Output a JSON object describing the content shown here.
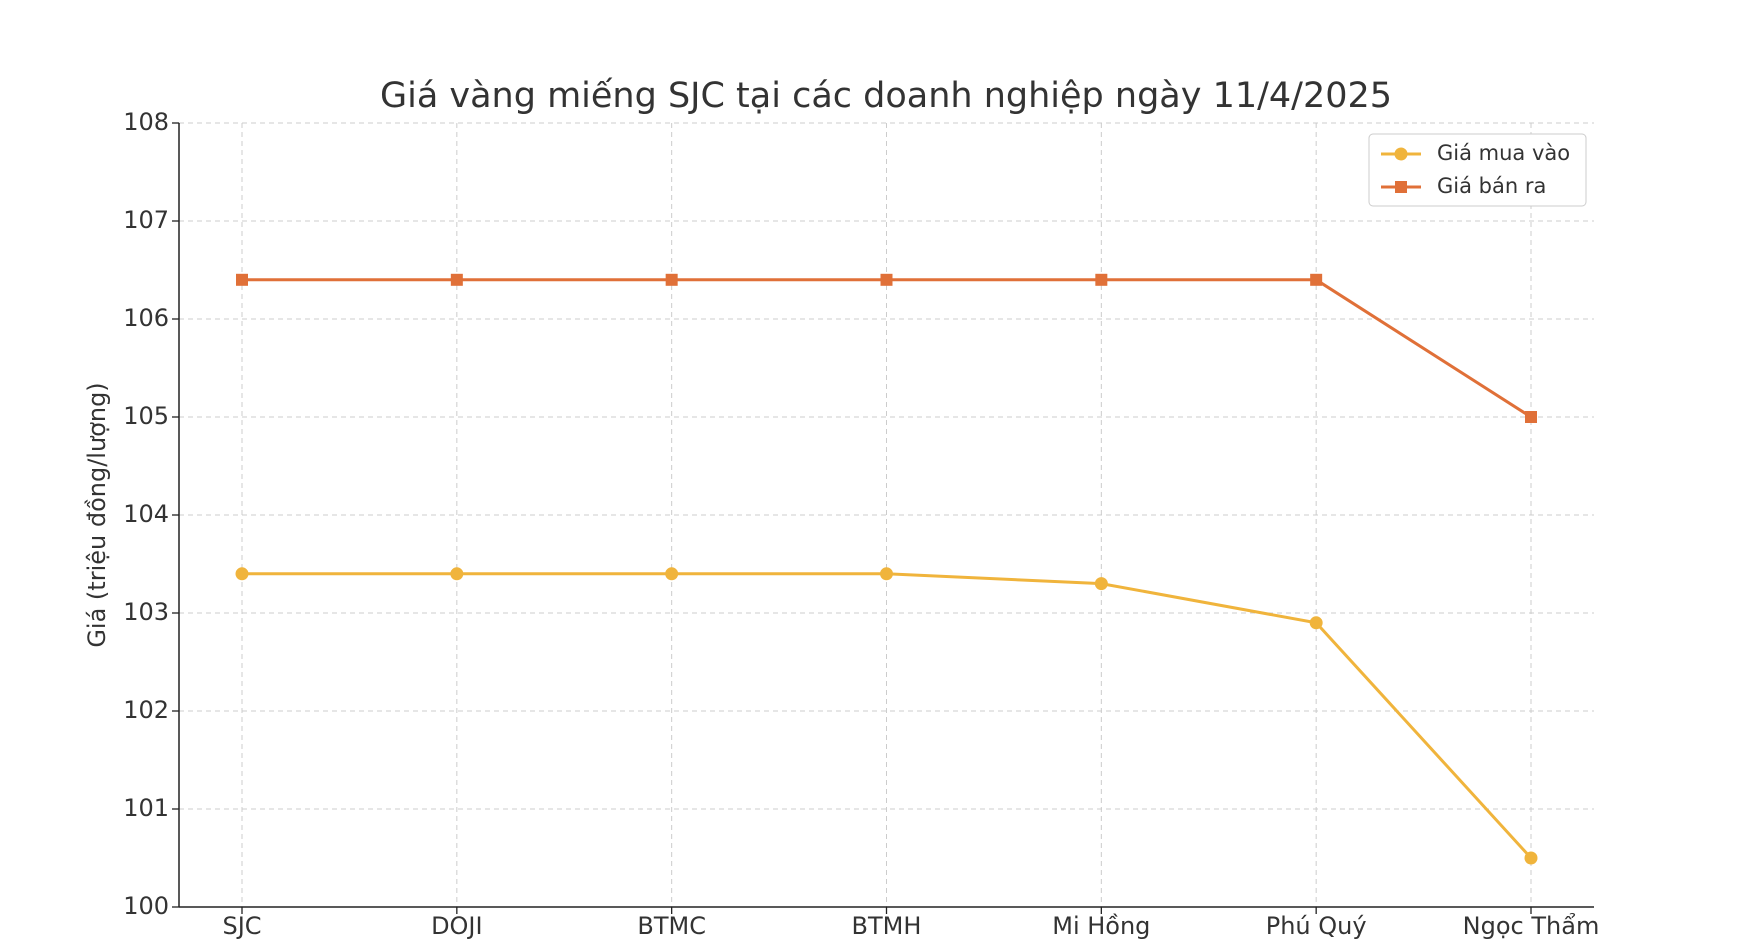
{
  "chart_data": {
    "type": "line",
    "title": "Giá vàng miếng SJC tại các doanh nghiệp ngày 11/4/2025",
    "y_label": "Giá (triệu đồng/lượng)",
    "categories": [
      "SJC",
      "DOJI",
      "BTMC",
      "BTMH",
      "Mi Hồng",
      "Phú Quý",
      "Ngọc Thẩm"
    ],
    "series": [
      {
        "name": "Giá mua vào",
        "color": "#f0b43c",
        "marker": "circle",
        "values": [
          103.4,
          103.4,
          103.4,
          103.4,
          103.3,
          102.9,
          100.5
        ]
      },
      {
        "name": "Giá bán ra",
        "color": "#e07038",
        "marker": "square",
        "values": [
          106.4,
          106.4,
          106.4,
          106.4,
          106.4,
          106.4,
          105.0
        ]
      }
    ],
    "ylim": [
      100,
      108
    ],
    "yticks": [
      100,
      101,
      102,
      103,
      104,
      105,
      106,
      107,
      108
    ],
    "grid": true,
    "legend": "upper right"
  }
}
